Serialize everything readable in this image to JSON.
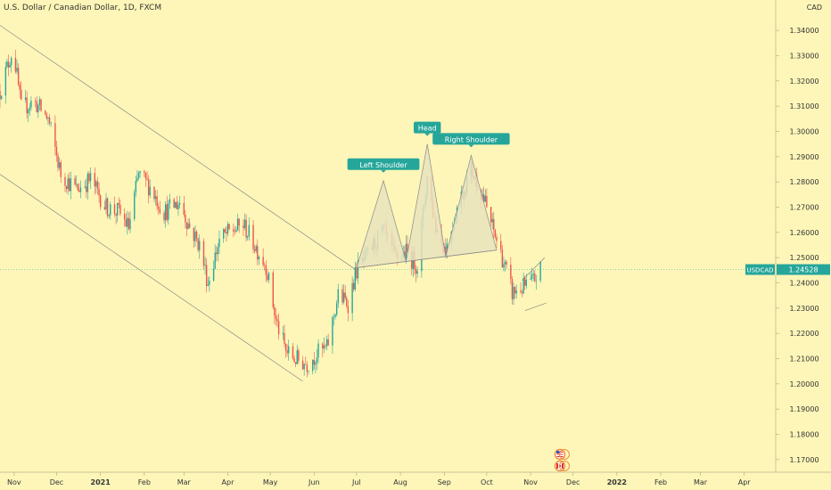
{
  "header": {
    "title": "U.S. Dollar / Canadian Dollar, 1D, FXCM",
    "currency": "CAD"
  },
  "colors": {
    "background": "#fdf6b8",
    "up": "#26a69a",
    "down": "#ef5350",
    "label_bg": "#26a69a",
    "pattern_fill": "#e9e3bd",
    "line": "#8a8a8a"
  },
  "flags": [
    "us-flag-icon",
    "canada-flag-icon"
  ],
  "chart_data": {
    "type": "candlestick",
    "symbol": "USDCAD",
    "last_price": "1.24528",
    "ylim": [
      1.165,
      1.345
    ],
    "y_ticks": [
      "1.34000",
      "1.33000",
      "1.32000",
      "1.31000",
      "1.30000",
      "1.29000",
      "1.28000",
      "1.27000",
      "1.26000",
      "1.25000",
      "1.24000",
      "1.23000",
      "1.22000",
      "1.21000",
      "1.20000",
      "1.19000",
      "1.18000",
      "1.17000"
    ],
    "x_ticks": [
      {
        "label": "Nov",
        "date": "2020-11-01"
      },
      {
        "label": "Dec",
        "date": "2020-12-01"
      },
      {
        "label": "2021",
        "date": "2021-01-01"
      },
      {
        "label": "Feb",
        "date": "2021-02-01"
      },
      {
        "label": "Mar",
        "date": "2021-03-01"
      },
      {
        "label": "Apr",
        "date": "2021-04-01"
      },
      {
        "label": "May",
        "date": "2021-05-01"
      },
      {
        "label": "Jun",
        "date": "2021-06-01"
      },
      {
        "label": "Jul",
        "date": "2021-07-01"
      },
      {
        "label": "Aug",
        "date": "2021-08-01"
      },
      {
        "label": "Sep",
        "date": "2021-09-01"
      },
      {
        "label": "Oct",
        "date": "2021-10-01"
      },
      {
        "label": "Nov",
        "date": "2021-11-01"
      },
      {
        "label": "Dec",
        "date": "2021-12-01"
      },
      {
        "label": "2022",
        "date": "2022-01-01"
      },
      {
        "label": "Feb",
        "date": "2022-02-01"
      },
      {
        "label": "Mar",
        "date": "2022-03-01"
      },
      {
        "label": "Apr",
        "date": "2022-04-01"
      }
    ],
    "x_range": [
      "2020-10-22",
      "2022-04-22"
    ],
    "price_path": [
      [
        "2020-10-22",
        1.316
      ],
      [
        "2020-10-30",
        1.331
      ],
      [
        "2020-11-02",
        1.326
      ],
      [
        "2020-11-06",
        1.309
      ],
      [
        "2020-11-15",
        1.312
      ],
      [
        "2020-11-25",
        1.305
      ],
      [
        "2020-12-04",
        1.283
      ],
      [
        "2020-12-15",
        1.277
      ],
      [
        "2020-12-25",
        1.281
      ],
      [
        "2021-01-05",
        1.27
      ],
      [
        "2021-01-14",
        1.268
      ],
      [
        "2021-01-21",
        1.262
      ],
      [
        "2021-01-28",
        1.283
      ],
      [
        "2021-02-05",
        1.278
      ],
      [
        "2021-02-15",
        1.268
      ],
      [
        "2021-02-26",
        1.272
      ],
      [
        "2021-03-05",
        1.262
      ],
      [
        "2021-03-12",
        1.255
      ],
      [
        "2021-03-18",
        1.24
      ],
      [
        "2021-03-26",
        1.257
      ],
      [
        "2021-04-02",
        1.26
      ],
      [
        "2021-04-12",
        1.263
      ],
      [
        "2021-04-20",
        1.255
      ],
      [
        "2021-04-28",
        1.247
      ],
      [
        "2021-05-05",
        1.225
      ],
      [
        "2021-05-12",
        1.213
      ],
      [
        "2021-05-18",
        1.21
      ],
      [
        "2021-05-27",
        1.208
      ],
      [
        "2021-06-03",
        1.212
      ],
      [
        "2021-06-10",
        1.214
      ],
      [
        "2021-06-18",
        1.235
      ],
      [
        "2021-06-25",
        1.232
      ],
      [
        "2021-07-01",
        1.245
      ],
      [
        "2021-07-08",
        1.25
      ],
      [
        "2021-07-14",
        1.256
      ],
      [
        "2021-07-20",
        1.26
      ],
      [
        "2021-07-28",
        1.25
      ],
      [
        "2021-08-05",
        1.252
      ],
      [
        "2021-08-13",
        1.247
      ],
      [
        "2021-08-20",
        1.282
      ],
      [
        "2021-08-26",
        1.262
      ],
      [
        "2021-09-02",
        1.253
      ],
      [
        "2021-09-10",
        1.27
      ],
      [
        "2021-09-20",
        1.285
      ],
      [
        "2021-09-28",
        1.275
      ],
      [
        "2021-10-05",
        1.262
      ],
      [
        "2021-10-12",
        1.25
      ],
      [
        "2021-10-19",
        1.236
      ],
      [
        "2021-10-26",
        1.238
      ],
      [
        "2021-11-02",
        1.24
      ],
      [
        "2021-11-08",
        1.2453
      ]
    ],
    "annotations": [
      {
        "label": "Left Shoulder",
        "date": "2021-07-20",
        "price": 1.2805
      },
      {
        "label": "Head",
        "date": "2021-08-20",
        "price": 1.295
      },
      {
        "label": "Right Shoulder",
        "date": "2021-09-20",
        "price": 1.2905
      }
    ],
    "head_shoulders": {
      "neckline": [
        [
          "2021-07-01",
          1.246
        ],
        [
          "2021-10-08",
          1.253
        ]
      ],
      "peaks": [
        [
          "2021-07-20",
          1.2805
        ],
        [
          "2021-08-20",
          1.295
        ],
        [
          "2021-09-20",
          1.2905
        ]
      ]
    },
    "trend_lines": [
      {
        "name": "upper-channel",
        "from": [
          "2020-10-22",
          1.342
        ],
        "to": [
          "2021-07-01",
          1.245
        ]
      },
      {
        "name": "lower-channel",
        "from": [
          "2020-10-22",
          1.283
        ],
        "to": [
          "2021-05-24",
          1.201
        ]
      },
      {
        "name": "wedge-upper",
        "from": [
          "2021-10-26",
          1.241
        ],
        "to": [
          "2021-11-11",
          1.25
        ]
      },
      {
        "name": "wedge-lower",
        "from": [
          "2021-10-28",
          1.229
        ],
        "to": [
          "2021-11-12",
          1.232
        ]
      }
    ]
  }
}
